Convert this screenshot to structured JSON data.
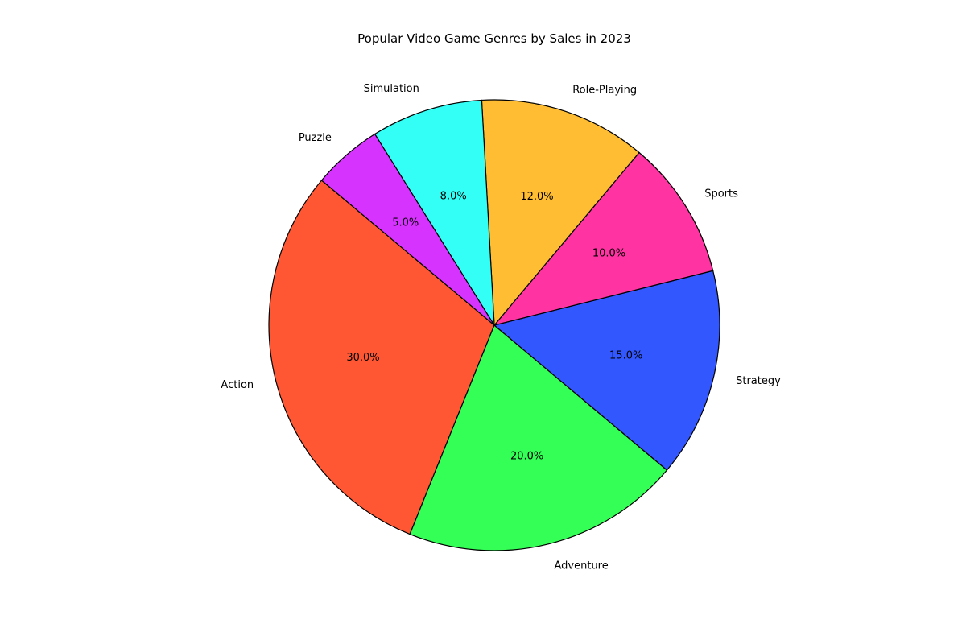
{
  "chart_data": {
    "type": "pie",
    "title": "Popular Video Game Genres by Sales in 2023",
    "slices": [
      {
        "label": "Action",
        "value": 30.0,
        "pct_label": "30.0%",
        "color": "#FF5733"
      },
      {
        "label": "Adventure",
        "value": 20.0,
        "pct_label": "20.0%",
        "color": "#33FF57"
      },
      {
        "label": "Strategy",
        "value": 15.0,
        "pct_label": "15.0%",
        "color": "#3357FF"
      },
      {
        "label": "Sports",
        "value": 10.0,
        "pct_label": "10.0%",
        "color": "#FF33A1"
      },
      {
        "label": "Role-Playing",
        "value": 12.0,
        "pct_label": "12.0%",
        "color": "#FFBD33"
      },
      {
        "label": "Simulation",
        "value": 8.0,
        "pct_label": "8.0%",
        "color": "#33FFF6"
      },
      {
        "label": "Puzzle",
        "value": 5.0,
        "pct_label": "5.0%",
        "color": "#D733FF"
      }
    ],
    "start_angle_deg": 140,
    "direction": "counterclockwise",
    "edge_color": "#000000",
    "legend": "none"
  }
}
